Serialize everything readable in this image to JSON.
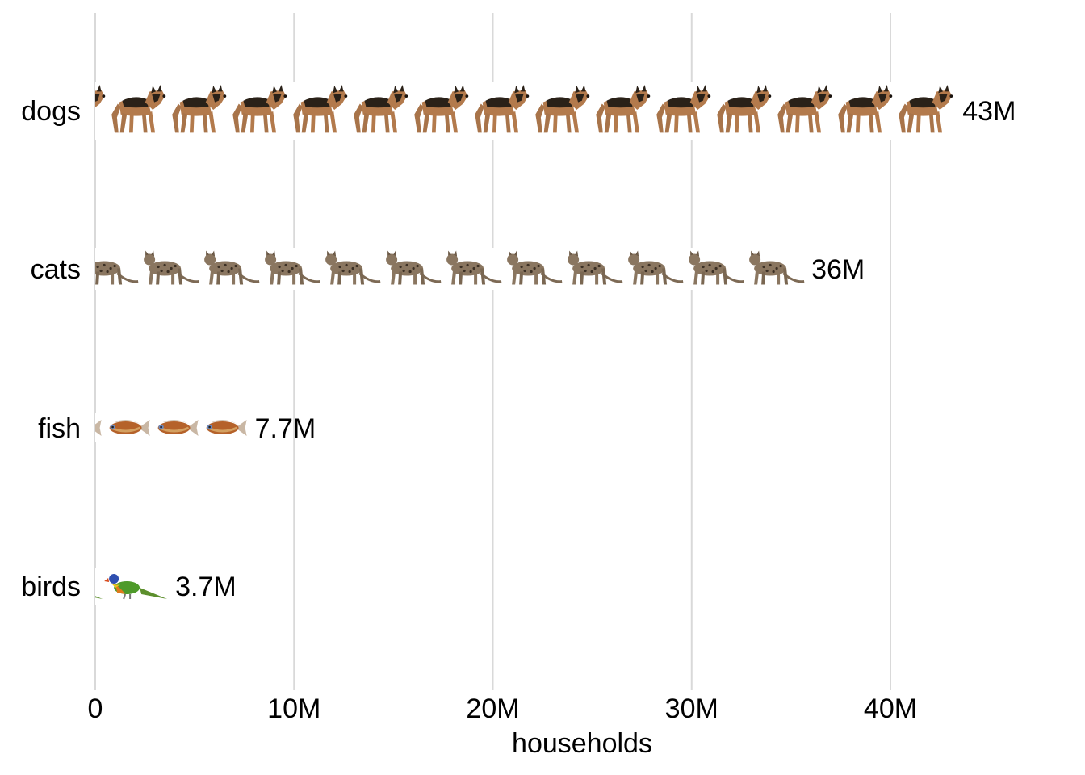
{
  "chart_data": {
    "type": "bar",
    "xlabel": "households",
    "xlim": [
      0,
      46000000
    ],
    "x_ticks": [
      0,
      10000000,
      20000000,
      30000000,
      40000000
    ],
    "x_tick_labels": [
      "0",
      "10M",
      "20M",
      "30M",
      "40M"
    ],
    "grid": true,
    "bar_style": "pictogram",
    "categories": [
      "dogs",
      "cats",
      "fish",
      "birds"
    ],
    "values": [
      43300000,
      35700000,
      7700000,
      3700000
    ],
    "value_labels": [
      "43M",
      "36M",
      "7.7M",
      "3.7M"
    ],
    "icons": [
      "dog-icon",
      "cat-icon",
      "fish-icon",
      "bird-icon"
    ]
  }
}
